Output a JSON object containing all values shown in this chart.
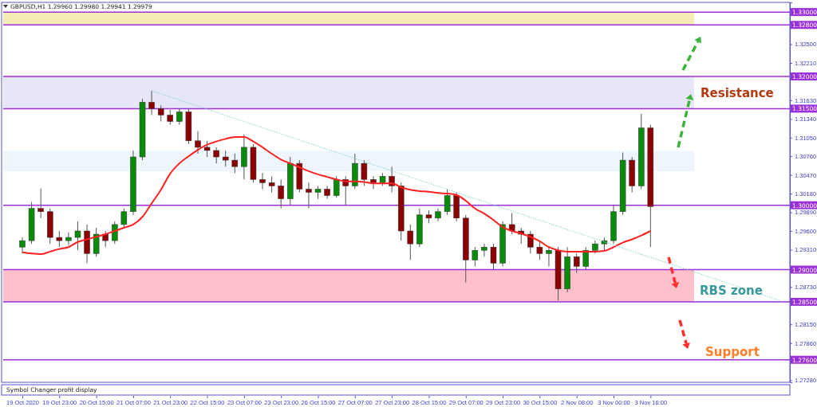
{
  "chart_data": {
    "type": "candlestick",
    "title": "GBPUSD,H1  1.29960 1.29980 1.29941 1.29979",
    "categories": [
      "19 Oct 2020",
      null,
      null,
      null,
      "19 Oct 23:00",
      null,
      null,
      null,
      "20 Oct 15:00",
      null,
      null,
      null,
      "21 Oct 07:00",
      null,
      null,
      null,
      "21 Oct 23:00",
      null,
      null,
      null,
      "22 Oct 15:00",
      null,
      null,
      null,
      "23 Oct 07:00",
      null,
      null,
      null,
      "23 Oct 23:00",
      null,
      null,
      null,
      "26 Oct 15:00",
      null,
      null,
      null,
      "27 Oct 07:00",
      null,
      null,
      null,
      "27 Oct 23:00",
      null,
      null,
      null,
      "28 Oct 15:00",
      null,
      null,
      null,
      "29 Oct 07:00",
      null,
      null,
      null,
      "29 Oct 23:00",
      null,
      null,
      null,
      "30 Oct 15:00",
      null,
      null,
      null,
      "2 Nov 08:00",
      null,
      null,
      null,
      "3 Nov 00:00",
      null,
      null,
      null,
      "3 Nov 16:00",
      null,
      null,
      null,
      null,
      null,
      null,
      null,
      null,
      null,
      null,
      null,
      null,
      null,
      null,
      null
    ],
    "ohlc": [
      [
        1.2935,
        1.295,
        1.2925,
        1.2945
      ],
      [
        1.2945,
        1.3005,
        1.294,
        1.2995
      ],
      [
        1.2995,
        1.3026,
        1.298,
        1.299
      ],
      [
        1.299,
        1.2995,
        1.294,
        1.295
      ],
      [
        1.295,
        1.296,
        1.2935,
        1.2945
      ],
      [
        1.2945,
        1.2958,
        1.2938,
        1.295
      ],
      [
        1.295,
        1.2975,
        1.293,
        1.296
      ],
      [
        1.296,
        1.297,
        1.291,
        1.2925
      ],
      [
        1.2925,
        1.2965,
        1.292,
        1.2955
      ],
      [
        1.2955,
        1.296,
        1.2935,
        1.2945
      ],
      [
        1.2945,
        1.2975,
        1.294,
        1.297
      ],
      [
        1.297,
        1.2995,
        1.2965,
        1.299
      ],
      [
        1.299,
        1.3085,
        1.2985,
        1.3075
      ],
      [
        1.3075,
        1.3165,
        1.307,
        1.316
      ],
      [
        1.316,
        1.3178,
        1.314,
        1.315
      ],
      [
        1.315,
        1.3155,
        1.313,
        1.314
      ],
      [
        1.314,
        1.3148,
        1.3125,
        1.313
      ],
      [
        1.313,
        1.315,
        1.3125,
        1.3145
      ],
      [
        1.3145,
        1.315,
        1.3095,
        1.31
      ],
      [
        1.31,
        1.3115,
        1.308,
        1.309
      ],
      [
        1.309,
        1.31,
        1.3075,
        1.3085
      ],
      [
        1.3085,
        1.309,
        1.3065,
        1.3075
      ],
      [
        1.3075,
        1.3085,
        1.306,
        1.307
      ],
      [
        1.307,
        1.308,
        1.305,
        1.306
      ],
      [
        1.306,
        1.311,
        1.304,
        1.309
      ],
      [
        1.309,
        1.3095,
        1.3035,
        1.304
      ],
      [
        1.304,
        1.305,
        1.3025,
        1.3035
      ],
      [
        1.3035,
        1.3045,
        1.302,
        1.303
      ],
      [
        1.303,
        1.304,
        1.2995,
        1.301
      ],
      [
        1.301,
        1.3075,
        1.3,
        1.3065
      ],
      [
        1.3065,
        1.307,
        1.302,
        1.3025
      ],
      [
        1.3025,
        1.3035,
        1.2995,
        1.302
      ],
      [
        1.302,
        1.303,
        1.301,
        1.3025
      ],
      [
        1.3025,
        1.303,
        1.301,
        1.3015
      ],
      [
        1.3015,
        1.3045,
        1.3012,
        1.304
      ],
      [
        1.304,
        1.3045,
        1.3,
        1.303
      ],
      [
        1.303,
        1.308,
        1.3025,
        1.3065
      ],
      [
        1.3065,
        1.307,
        1.303,
        1.304
      ],
      [
        1.304,
        1.3045,
        1.3025,
        1.3035
      ],
      [
        1.3035,
        1.305,
        1.303,
        1.3045
      ],
      [
        1.3045,
        1.306,
        1.302,
        1.303
      ],
      [
        1.303,
        1.3035,
        1.2945,
        1.296
      ],
      [
        1.296,
        1.297,
        1.2915,
        1.294
      ],
      [
        1.294,
        1.2995,
        1.2935,
        1.2985
      ],
      [
        1.2985,
        1.2992,
        1.2972,
        1.298
      ],
      [
        1.298,
        1.2995,
        1.2975,
        1.299
      ],
      [
        1.299,
        1.3025,
        1.2985,
        1.3015
      ],
      [
        1.3015,
        1.302,
        1.2975,
        1.298
      ],
      [
        1.298,
        1.2985,
        1.288,
        1.2915
      ],
      [
        1.2915,
        1.2935,
        1.2905,
        1.293
      ],
      [
        1.293,
        1.294,
        1.292,
        1.2935
      ],
      [
        1.2935,
        1.294,
        1.29,
        1.291
      ],
      [
        1.291,
        1.2975,
        1.2905,
        1.297
      ],
      [
        1.297,
        1.2988,
        1.2955,
        1.296
      ],
      [
        1.296,
        1.2965,
        1.294,
        1.2955
      ],
      [
        1.2955,
        1.296,
        1.2925,
        1.2935
      ],
      [
        1.2935,
        1.2945,
        1.2915,
        1.2925
      ],
      [
        1.2925,
        1.2935,
        1.2905,
        1.293
      ],
      [
        1.293,
        1.2935,
        1.2852,
        1.287
      ],
      [
        1.287,
        1.2935,
        1.2865,
        1.292
      ],
      [
        1.292,
        1.2925,
        1.2895,
        1.2905
      ],
      [
        1.2905,
        1.2935,
        1.29,
        1.293
      ],
      [
        1.293,
        1.2945,
        1.2925,
        1.294
      ],
      [
        1.294,
        1.295,
        1.293,
        1.2945
      ],
      [
        1.2945,
        1.3,
        1.294,
        1.299
      ],
      [
        1.299,
        1.3082,
        1.2985,
        1.307
      ],
      [
        1.307,
        1.3075,
        1.302,
        1.303
      ],
      [
        1.303,
        1.3142,
        1.3025,
        1.312
      ],
      [
        1.312,
        1.3125,
        1.2935,
        1.2998
      ],
      null,
      null,
      null,
      null,
      null,
      null,
      null,
      null,
      null,
      null,
      null,
      null,
      null,
      null,
      null
    ],
    "series": [
      {
        "type": "line",
        "color": "#ff2020",
        "line_style": "solid",
        "values": [
          1.2927,
          1.2925,
          1.2924,
          1.2928,
          1.2932,
          1.2935,
          1.2943,
          1.2947,
          1.2951,
          1.2955,
          1.296,
          1.2965,
          1.297,
          1.2982,
          1.3003,
          1.3024,
          1.3049,
          1.3065,
          1.3076,
          1.3086,
          1.3094,
          1.3099,
          1.3103,
          1.3106,
          1.3106,
          1.3099,
          1.309,
          1.308,
          1.3071,
          1.3065,
          1.3059,
          1.3053,
          1.3048,
          1.3044,
          1.304,
          1.3037,
          1.3037,
          1.3036,
          1.3034,
          1.3034,
          1.3034,
          1.3028,
          1.3024,
          1.3022,
          1.3021,
          1.3019,
          1.3018,
          1.3016,
          1.3007,
          1.2995,
          1.2987,
          1.2977,
          1.2966,
          1.296,
          1.2956,
          1.2951,
          1.2944,
          1.2935,
          1.293,
          1.2928,
          1.2928,
          1.2928,
          1.2928,
          1.2929,
          1.2935,
          1.2942,
          1.2947,
          1.2953,
          1.296,
          null,
          null,
          null,
          null,
          null,
          null,
          null,
          null,
          null,
          null,
          null,
          null,
          null,
          null,
          null
        ]
      },
      {
        "type": "line",
        "color": "#7fd3d3",
        "line_style": "dotted",
        "values": [
          null,
          null,
          null,
          null,
          null,
          null,
          null,
          null,
          null,
          null,
          null,
          null,
          null,
          null,
          1.3178,
          null,
          null,
          null,
          null,
          null,
          null,
          null,
          null,
          null,
          null,
          null,
          null,
          null,
          null,
          null,
          null,
          null,
          null,
          null,
          null,
          null,
          null,
          null,
          null,
          null,
          null,
          null,
          null,
          null,
          null,
          null,
          null,
          null,
          null,
          null,
          null,
          null,
          null,
          null,
          null,
          null,
          null,
          null,
          null,
          null,
          null,
          null,
          null,
          null,
          null,
          null,
          null,
          null,
          null,
          null,
          null,
          null,
          null,
          null,
          null,
          null,
          null,
          null,
          null,
          null,
          null,
          null,
          1.2852,
          null
        ]
      }
    ],
    "ylim": [
      1.2725,
      1.3315
    ],
    "yticks": [
      {
        "value": 1.325,
        "label": "1.32500"
      },
      {
        "value": 1.3221,
        "label": "1.32210"
      },
      {
        "value": 1.3163,
        "label": "1.31630"
      },
      {
        "value": 1.3134,
        "label": "1.31340"
      },
      {
        "value": 1.3105,
        "label": "1.31050"
      },
      {
        "value": 1.3076,
        "label": "1.30760"
      },
      {
        "value": 1.3047,
        "label": "1.30470"
      },
      {
        "value": 1.3018,
        "label": "1.30180"
      },
      {
        "value": 1.2989,
        "label": "1.29890"
      },
      {
        "value": 1.296,
        "label": "1.29600"
      },
      {
        "value": 1.2931,
        "label": "1.29310"
      },
      {
        "value": 1.2873,
        "label": "1.28730"
      },
      {
        "value": 1.2815,
        "label": "1.28150"
      },
      {
        "value": 1.2786,
        "label": "1.27860"
      },
      {
        "value": 1.2728,
        "label": "1.27280"
      }
    ],
    "grid": false,
    "bands": [
      {
        "axis": "y",
        "from": 1.328,
        "to": 1.33,
        "color": "#f5ebb5"
      },
      {
        "axis": "y",
        "from": 1.315,
        "to": 1.32,
        "color": "#e6e6f8"
      },
      {
        "axis": "y",
        "from": 1.3053,
        "to": 1.3084,
        "color": "#eef5fd"
      },
      {
        "axis": "y",
        "from": 1.285,
        "to": 1.29,
        "color": "#ffc0cb"
      }
    ],
    "ref_lines": [
      {
        "axis": "y",
        "value": 1.33,
        "label": "1.33000",
        "color": "#9b30d9"
      },
      {
        "axis": "y",
        "value": 1.328,
        "label": "1.32800",
        "color": "#9b30d9"
      },
      {
        "axis": "y",
        "value": 1.32,
        "label": "1.32000",
        "color": "#9b30d9"
      },
      {
        "axis": "y",
        "value": 1.315,
        "label": "1.31500",
        "color": "#9b30d9"
      },
      {
        "axis": "y",
        "value": 1.3,
        "label": "1.30000",
        "color": "#9b30d9"
      },
      {
        "axis": "y",
        "value": 1.29,
        "label": "1.29000",
        "color": "#9b30d9"
      },
      {
        "axis": "y",
        "value": 1.285,
        "label": "1.28500",
        "color": "#9b30d9"
      },
      {
        "axis": "y",
        "value": 1.276,
        "label": "1.27600",
        "color": "#9b30d9"
      }
    ],
    "annotations": [
      "Resistance",
      "RBS zone",
      "Support",
      "Symbol Changer profit display"
    ]
  }
}
